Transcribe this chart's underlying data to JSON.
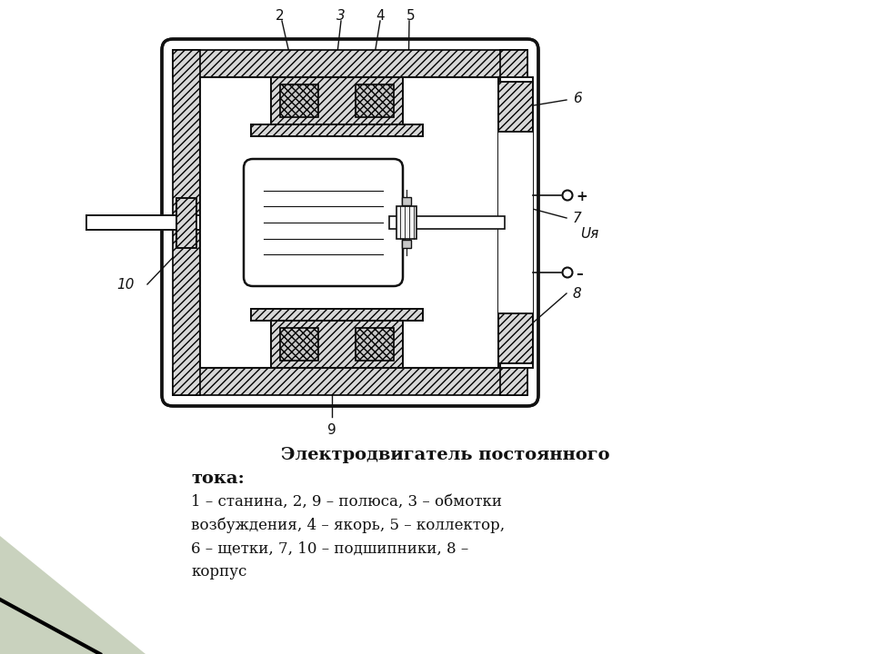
{
  "canvas_bg": "#ffffff",
  "line_color": "#111111",
  "hatch_fc": "#d8d8d8",
  "coil_fc": "#c8c8c8",
  "title_line1": "Электродвигатель постоянного",
  "title_line2": "тока:",
  "caption": "1 – станина, 2, 9 – полюса, 3 – обмотки\nвозбуждения, 4 – якорь, 5 – коллектор,\n6 – щетки, 7, 10 – подшипники, 8 –\nкорпус",
  "Uya": "Uя",
  "corner_color": "#b8c4a8"
}
